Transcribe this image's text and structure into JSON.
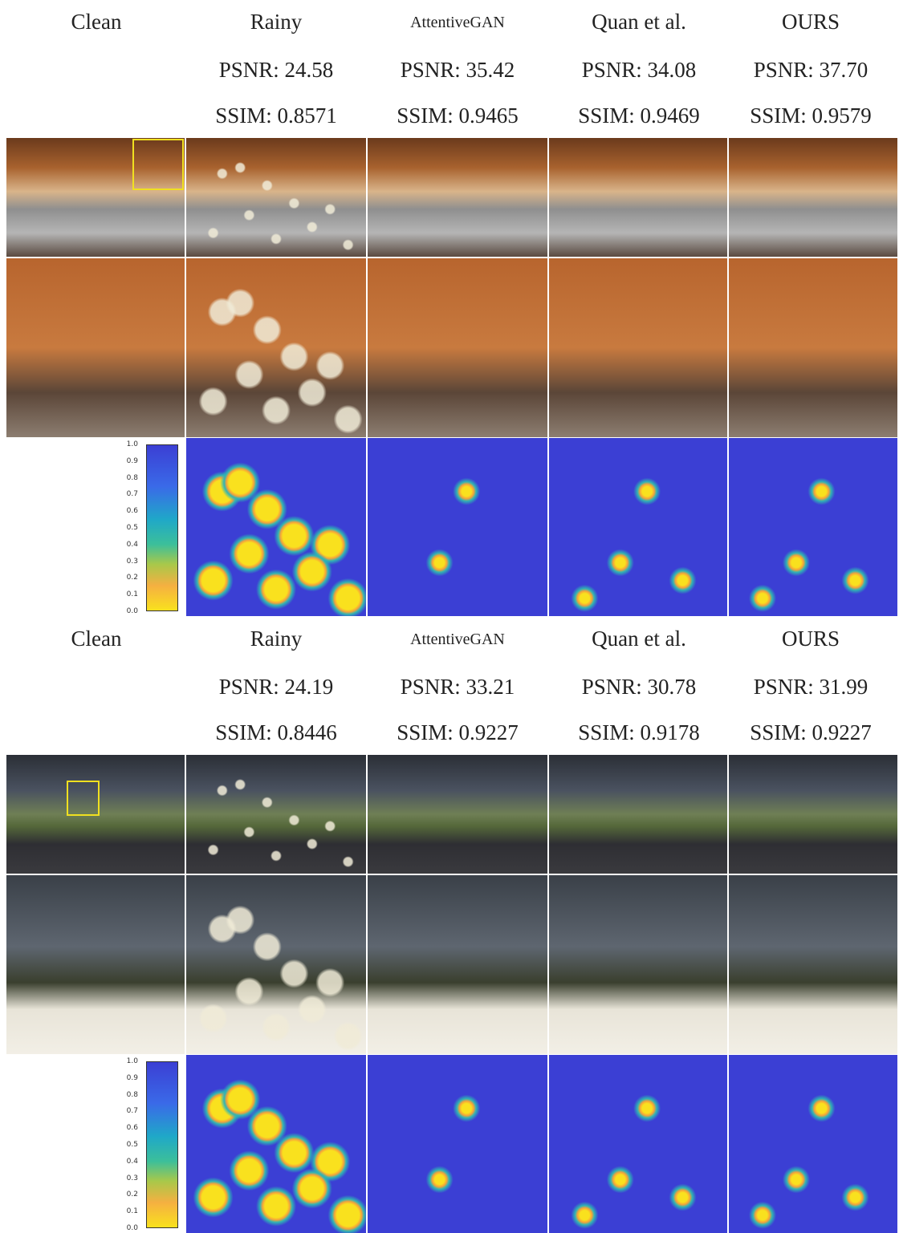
{
  "panels": [
    {
      "columns": [
        "Clean",
        "Rainy",
        "AttentiveGAN",
        "Quan et al.",
        "OURS"
      ],
      "psnr": [
        "PSNR: 24.58",
        "PSNR: 35.42",
        "PSNR: 34.08",
        "PSNR: 37.70"
      ],
      "ssim": [
        "SSIM: 0.8571",
        "SSIM: 0.9465",
        "SSIM: 0.9469",
        "SSIM: 0.9579"
      ],
      "colorbar_ticks": [
        "1.0",
        "0.9",
        "0.8",
        "0.7",
        "0.6",
        "0.5",
        "0.4",
        "0.3",
        "0.2",
        "0.1",
        "0.0"
      ]
    },
    {
      "columns": [
        "Clean",
        "Rainy",
        "AttentiveGAN",
        "Quan et al.",
        "OURS"
      ],
      "psnr": [
        "PSNR: 24.19",
        "PSNR: 33.21",
        "PSNR: 30.78",
        "PSNR: 31.99"
      ],
      "ssim": [
        "SSIM: 0.8446",
        "SSIM: 0.9227",
        "SSIM: 0.9178",
        "SSIM: 0.9227"
      ],
      "colorbar_ticks": [
        "1.0",
        "0.9",
        "0.8",
        "0.7",
        "0.6",
        "0.5",
        "0.4",
        "0.3",
        "0.2",
        "0.1",
        "0.0"
      ]
    }
  ]
}
